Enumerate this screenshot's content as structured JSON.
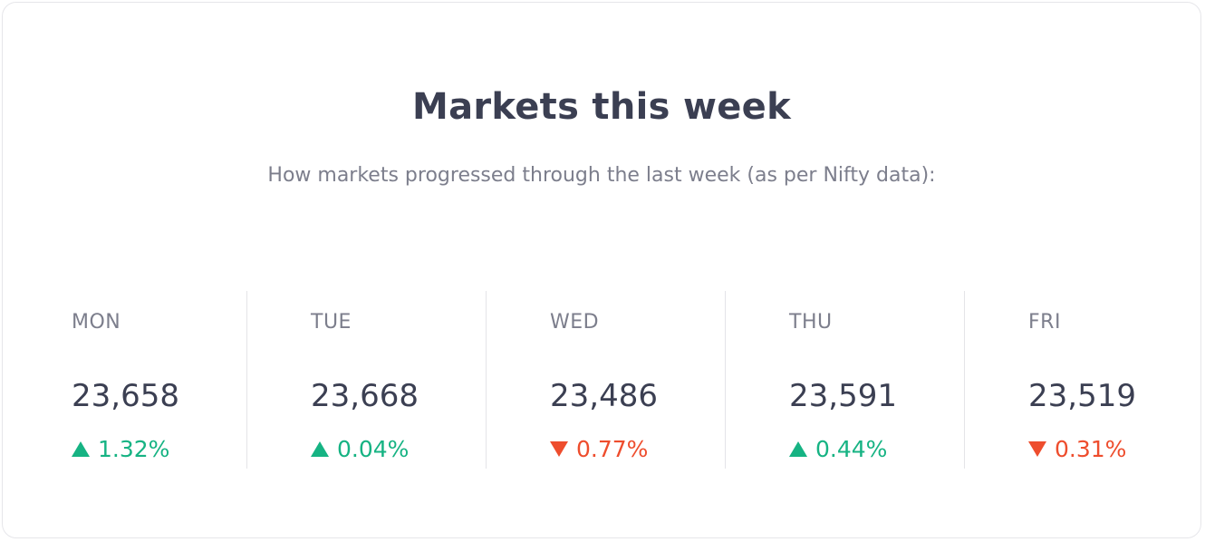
{
  "title": "Markets this week",
  "subtitle": "How markets progressed through the last week (as per Nifty data):",
  "colors": {
    "up": "#16b383",
    "down": "#ee4d2d",
    "text_primary": "#3b3f52",
    "text_secondary": "#7c7e8c"
  },
  "days": [
    {
      "label": "MON",
      "value": "23,658",
      "change": "1.32%",
      "direction": "up",
      "icon": "triangle-up-icon"
    },
    {
      "label": "TUE",
      "value": "23,668",
      "change": "0.04%",
      "direction": "up",
      "icon": "triangle-up-icon"
    },
    {
      "label": "WED",
      "value": "23,486",
      "change": "0.77%",
      "direction": "down",
      "icon": "triangle-down-icon"
    },
    {
      "label": "THU",
      "value": "23,591",
      "change": "0.44%",
      "direction": "up",
      "icon": "triangle-up-icon"
    },
    {
      "label": "FRI",
      "value": "23,519",
      "change": "0.31%",
      "direction": "down",
      "icon": "triangle-down-icon"
    }
  ]
}
